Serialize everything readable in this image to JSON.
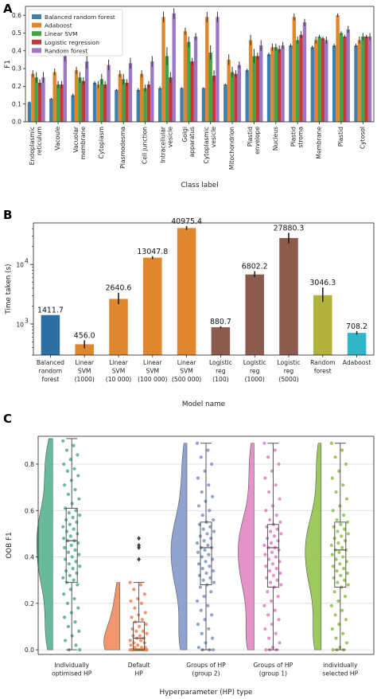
{
  "panels": [
    "A",
    "B",
    "C"
  ],
  "chart_data": [
    {
      "type": "bar",
      "panel": "A",
      "xlabel": "Class label",
      "ylabel": "F1",
      "ylim": [
        0,
        0.65
      ],
      "yticks": [
        0.0,
        0.1,
        0.2,
        0.3,
        0.4,
        0.5,
        0.6
      ],
      "ytick_labels": [
        "0.0",
        "0.1",
        "0.2",
        "0.3",
        "0.4",
        "0.5",
        "0.6"
      ],
      "grid": false,
      "legend": "top-left",
      "categories": [
        "Endoplasmic reticulum",
        "Vacoule",
        "Vacuolar membrane",
        "Cytoplasm",
        "Plasmodesma",
        "Cell junction",
        "Intracellular vesicle",
        "Golgi apparatus",
        "Cytoplasmic vesicle",
        "Mitochondrion",
        "Plastid envelope",
        "Nucleus",
        "Plastid stroma",
        "Membrane",
        "Plastid",
        "Cytosol"
      ],
      "category_labels": [
        [
          "Endoplasmic",
          "reticulum"
        ],
        [
          "Vacoule"
        ],
        [
          "Vacuolar",
          "membrane"
        ],
        [
          "Cytoplasm"
        ],
        [
          "Plasmodesma"
        ],
        [
          "Cell junction"
        ],
        [
          "Intracellular",
          "vesicle"
        ],
        [
          "Golgi",
          "apparatus"
        ],
        [
          "Cytoplasmic",
          "vesicle"
        ],
        [
          "Mitochondrion"
        ],
        [
          "Plastid",
          "envelope"
        ],
        [
          "Nucleus"
        ],
        [
          "Plastid",
          "stroma"
        ],
        [
          "Membrane"
        ],
        [
          "Plastid"
        ],
        [
          "Cytosol"
        ]
      ],
      "series": [
        {
          "name": "Balanced random forest",
          "color": "#3f7fad",
          "values": [
            0.11,
            0.13,
            0.15,
            0.22,
            0.18,
            0.18,
            0.19,
            0.19,
            0.19,
            0.21,
            0.29,
            0.38,
            0.43,
            0.42,
            0.43,
            0.43
          ],
          "errors": [
            0.005,
            0.005,
            0.01,
            0.01,
            0.005,
            0.01,
            0.01,
            0.005,
            0.005,
            0.005,
            0.01,
            0.01,
            0.01,
            0.01,
            0.01,
            0.01
          ]
        },
        {
          "name": "Adaboost",
          "color": "#e0872e",
          "values": [
            0.27,
            0.28,
            0.29,
            0.21,
            0.27,
            0.27,
            0.59,
            0.51,
            0.59,
            0.35,
            0.46,
            0.42,
            0.59,
            0.46,
            0.6,
            0.46
          ],
          "errors": [
            0.02,
            0.02,
            0.02,
            0.02,
            0.02,
            0.02,
            0.03,
            0.02,
            0.03,
            0.03,
            0.03,
            0.02,
            0.02,
            0.02,
            0.01,
            0.02
          ]
        },
        {
          "name": "Linear SVM",
          "color": "#41a447",
          "values": [
            0.25,
            0.21,
            0.25,
            0.24,
            0.24,
            0.19,
            0.37,
            0.45,
            0.39,
            0.28,
            0.37,
            0.42,
            0.46,
            0.48,
            0.5,
            0.48
          ],
          "errors": [
            0.03,
            0.02,
            0.03,
            0.03,
            0.03,
            0.02,
            0.05,
            0.03,
            0.04,
            0.03,
            0.04,
            0.02,
            0.02,
            0.01,
            0.01,
            0.02
          ]
        },
        {
          "name": "Logistic regression",
          "color": "#c8383b",
          "values": [
            0.22,
            0.21,
            0.23,
            0.21,
            0.22,
            0.21,
            0.25,
            0.34,
            0.26,
            0.27,
            0.37,
            0.41,
            0.49,
            0.47,
            0.48,
            0.48
          ],
          "errors": [
            0.02,
            0.02,
            0.02,
            0.02,
            0.02,
            0.02,
            0.03,
            0.02,
            0.03,
            0.02,
            0.02,
            0.02,
            0.02,
            0.01,
            0.01,
            0.01
          ]
        },
        {
          "name": "Random forest",
          "color": "#9a78c4",
          "values": [
            0.25,
            0.37,
            0.34,
            0.32,
            0.33,
            0.34,
            0.61,
            0.48,
            0.59,
            0.32,
            0.43,
            0.43,
            0.56,
            0.46,
            0.52,
            0.48
          ],
          "errors": [
            0.03,
            0.03,
            0.04,
            0.03,
            0.03,
            0.03,
            0.03,
            0.02,
            0.03,
            0.02,
            0.03,
            0.02,
            0.02,
            0.02,
            0.02,
            0.02
          ]
        }
      ]
    },
    {
      "type": "bar",
      "panel": "B",
      "xlabel": "Model name",
      "ylabel": "Time taken (s)",
      "yscale": "log",
      "ylim": [
        300,
        50000
      ],
      "yticks": [
        1000,
        10000
      ],
      "ytick_labels": [
        [
          "10",
          "3"
        ],
        [
          "10",
          "4"
        ]
      ],
      "grid": false,
      "categories": [
        "Balanced random forest",
        "Linear SVM (1000)",
        "Linear SVM (10 000)",
        "Linear SVM (100 000)",
        "Linear SVM (500 000)",
        "Logistic reg (100)",
        "Logistic reg (1000)",
        "Logistic reg (5000)",
        "Random forest",
        "Adaboost"
      ],
      "category_labels": [
        [
          "Balanced",
          "random",
          "forest"
        ],
        [
          "Linear",
          "SVM",
          "(1000)"
        ],
        [
          "Linear",
          "SVM",
          "(10 000)"
        ],
        [
          "Linear",
          "SVM",
          "(100 000)"
        ],
        [
          "Linear",
          "SVM",
          "(500 000)"
        ],
        [
          "Logistic",
          "reg",
          "(100)"
        ],
        [
          "Logistic",
          "reg",
          "(1000)"
        ],
        [
          "Logistic",
          "reg",
          "(5000)"
        ],
        [
          "Random",
          "forest"
        ],
        [
          "Adaboost"
        ]
      ],
      "values": [
        1411.7,
        456.0,
        2640.6,
        13047.8,
        40975.4,
        880.7,
        6802.2,
        27880.3,
        3046.3,
        708.2
      ],
      "value_labels": [
        "1411.7",
        "456.0",
        "2640.6",
        "13047.8",
        "40975.4",
        "880.7",
        "6802.2",
        "27880.3",
        "3046.3",
        "708.2"
      ],
      "error_ranges": [
        [
          1411.7,
          1411.7
        ],
        [
          390,
          530
        ],
        [
          2150,
          3350
        ],
        [
          12300,
          13800
        ],
        [
          38000,
          44500
        ],
        [
          850,
          915
        ],
        [
          6100,
          7700
        ],
        [
          22500,
          34000
        ],
        [
          2350,
          4100
        ],
        [
          660,
          760
        ]
      ],
      "colors": [
        "#2d6ea3",
        "#e0872e",
        "#e0872e",
        "#e0872e",
        "#e0872e",
        "#8c5b4e",
        "#8c5b4e",
        "#8c5b4e",
        "#b0b23b",
        "#31b5c9"
      ]
    },
    {
      "type": "scatter",
      "subtype": "raincloud (half-violin + box + jittered points)",
      "panel": "C",
      "xlabel": "Hyperparameter (HP) type",
      "ylabel": "OOB F1",
      "ylim": [
        -0.02,
        0.92
      ],
      "yticks": [
        0.0,
        0.2,
        0.4,
        0.6,
        0.8
      ],
      "ytick_labels": [
        "0.0",
        "0.2",
        "0.4",
        "0.6",
        "0.8"
      ],
      "grid": true,
      "categories": [
        "Individually optimised HP",
        "Default HP",
        "Groups of HP (group 2)",
        "Groups of HP (group 1)",
        "individually selected HP"
      ],
      "category_labels": [
        [
          "Individually",
          "optimised HP"
        ],
        [
          "Default",
          "HP"
        ],
        [
          "Groups of HP",
          "(group 2)"
        ],
        [
          "Groups of HP",
          "(group 1)"
        ],
        [
          "individually",
          "selected HP"
        ]
      ],
      "colors": [
        "#4fae8c",
        "#ee8454",
        "#7d92c6",
        "#df7fc1",
        "#8cc043"
      ],
      "box": [
        {
          "min": 0.0,
          "q1": 0.29,
          "median": 0.47,
          "q3": 0.61,
          "max": 0.91
        },
        {
          "min": 0.0,
          "q1": 0.0,
          "median": 0.05,
          "q3": 0.12,
          "max": 0.29,
          "outliers": [
            0.39,
            0.44,
            0.45,
            0.48
          ]
        },
        {
          "min": 0.0,
          "q1": 0.28,
          "median": 0.44,
          "q3": 0.55,
          "max": 0.89
        },
        {
          "min": 0.0,
          "q1": 0.27,
          "median": 0.44,
          "q3": 0.54,
          "max": 0.89
        },
        {
          "min": 0.0,
          "q1": 0.27,
          "median": 0.43,
          "q3": 0.55,
          "max": 0.89
        }
      ],
      "points": [
        [
          0.9,
          0.88,
          0.86,
          0.84,
          0.82,
          0.8,
          0.78,
          0.77,
          0.75,
          0.73,
          0.71,
          0.69,
          0.67,
          0.65,
          0.63,
          0.61,
          0.6,
          0.59,
          0.58,
          0.57,
          0.56,
          0.55,
          0.54,
          0.53,
          0.52,
          0.51,
          0.5,
          0.49,
          0.48,
          0.47,
          0.47,
          0.46,
          0.45,
          0.44,
          0.43,
          0.42,
          0.41,
          0.4,
          0.39,
          0.38,
          0.37,
          0.36,
          0.35,
          0.34,
          0.33,
          0.32,
          0.31,
          0.3,
          0.29,
          0.28,
          0.26,
          0.24,
          0.22,
          0.2,
          0.18,
          0.16,
          0.14,
          0.12,
          0.1,
          0.08,
          0.06,
          0.04,
          0.02,
          0.0,
          0.0
        ],
        [
          0.29,
          0.28,
          0.26,
          0.24,
          0.22,
          0.21,
          0.2,
          0.18,
          0.16,
          0.15,
          0.14,
          0.13,
          0.12,
          0.11,
          0.1,
          0.09,
          0.08,
          0.08,
          0.07,
          0.06,
          0.06,
          0.05,
          0.05,
          0.04,
          0.04,
          0.03,
          0.03,
          0.02,
          0.02,
          0.01,
          0.01,
          0.01,
          0.0,
          0.0,
          0.0,
          0.0,
          0.0,
          0.0,
          0.0,
          0.0,
          0.0,
          0.0,
          0.0,
          0.0,
          0.0,
          0.0,
          0.0
        ],
        [
          0.89,
          0.86,
          0.83,
          0.8,
          0.77,
          0.74,
          0.71,
          0.68,
          0.66,
          0.64,
          0.62,
          0.6,
          0.58,
          0.56,
          0.55,
          0.54,
          0.53,
          0.52,
          0.51,
          0.5,
          0.49,
          0.48,
          0.47,
          0.46,
          0.45,
          0.44,
          0.44,
          0.43,
          0.42,
          0.41,
          0.4,
          0.39,
          0.38,
          0.37,
          0.36,
          0.35,
          0.34,
          0.33,
          0.32,
          0.31,
          0.3,
          0.29,
          0.28,
          0.27,
          0.25,
          0.23,
          0.21,
          0.19,
          0.17,
          0.15,
          0.13,
          0.11,
          0.09,
          0.07,
          0.05,
          0.03,
          0.01,
          0.0,
          0.0,
          0.0
        ],
        [
          0.89,
          0.86,
          0.83,
          0.8,
          0.77,
          0.74,
          0.71,
          0.68,
          0.65,
          0.62,
          0.6,
          0.58,
          0.56,
          0.55,
          0.54,
          0.53,
          0.52,
          0.51,
          0.5,
          0.49,
          0.48,
          0.47,
          0.46,
          0.45,
          0.44,
          0.44,
          0.43,
          0.42,
          0.41,
          0.4,
          0.39,
          0.38,
          0.37,
          0.36,
          0.35,
          0.34,
          0.33,
          0.32,
          0.31,
          0.3,
          0.29,
          0.28,
          0.27,
          0.25,
          0.23,
          0.21,
          0.19,
          0.17,
          0.15,
          0.13,
          0.11,
          0.09,
          0.07,
          0.05,
          0.03,
          0.01,
          0.0,
          0.0,
          0.0
        ],
        [
          0.89,
          0.86,
          0.83,
          0.8,
          0.77,
          0.74,
          0.71,
          0.68,
          0.65,
          0.62,
          0.6,
          0.58,
          0.56,
          0.55,
          0.54,
          0.53,
          0.52,
          0.51,
          0.5,
          0.49,
          0.48,
          0.47,
          0.46,
          0.45,
          0.44,
          0.43,
          0.43,
          0.42,
          0.41,
          0.4,
          0.39,
          0.38,
          0.37,
          0.36,
          0.35,
          0.34,
          0.33,
          0.32,
          0.31,
          0.3,
          0.29,
          0.28,
          0.27,
          0.25,
          0.23,
          0.21,
          0.19,
          0.17,
          0.15,
          0.13,
          0.11,
          0.09,
          0.07,
          0.05,
          0.03,
          0.01,
          0.0,
          0.0,
          0.0
        ]
      ]
    }
  ]
}
